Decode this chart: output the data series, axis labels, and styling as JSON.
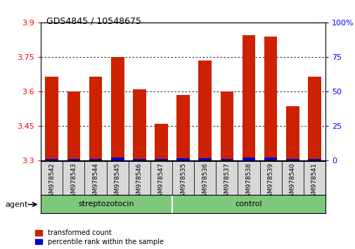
{
  "title": "GDS4845 / 10548675",
  "samples": [
    "GSM978542",
    "GSM978543",
    "GSM978544",
    "GSM978545",
    "GSM978546",
    "GSM978547",
    "GSM978535",
    "GSM978536",
    "GSM978537",
    "GSM978538",
    "GSM978539",
    "GSM978540",
    "GSM978541"
  ],
  "red_values": [
    3.665,
    3.6,
    3.665,
    3.75,
    3.61,
    3.46,
    3.585,
    3.735,
    3.6,
    3.845,
    3.84,
    3.535,
    3.665
  ],
  "blue_values": [
    0.008,
    0.007,
    0.008,
    0.012,
    0.007,
    0.008,
    0.009,
    0.009,
    0.007,
    0.013,
    0.012,
    0.006,
    0.008
  ],
  "groups": [
    "streptozotocin",
    "streptozotocin",
    "streptozotocin",
    "streptozotocin",
    "streptozotocin",
    "streptozotocin",
    "control",
    "control",
    "control",
    "control",
    "control",
    "control",
    "control"
  ],
  "y_min": 3.3,
  "y_max": 3.9,
  "y_ticks": [
    3.3,
    3.45,
    3.6,
    3.75,
    3.9
  ],
  "y_right_ticks": [
    0,
    25,
    50,
    75,
    100
  ],
  "bar_color_red": "#CC2200",
  "bar_color_blue": "#0000CC",
  "legend_red": "transformed count",
  "legend_blue": "percentile rank within the sample",
  "agent_label": "agent",
  "streptozotocin_range": [
    0,
    5
  ],
  "control_range": [
    6,
    12
  ]
}
